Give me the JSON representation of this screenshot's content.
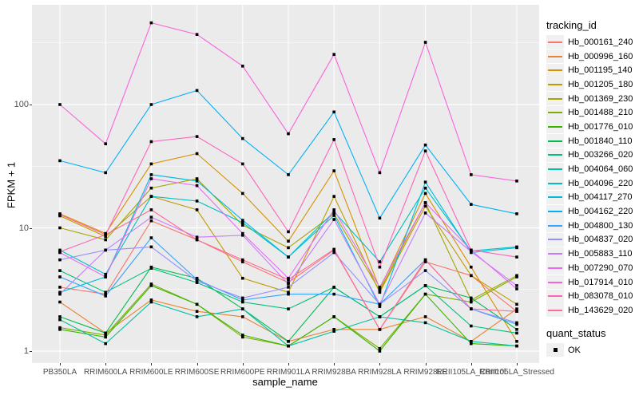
{
  "panel": {
    "bg": "#EBEBEB",
    "grid_color": "#FFFFFF",
    "point_color": "#000000"
  },
  "legend": {
    "tracking_title": "tracking_id",
    "quant_title": "quant_status",
    "quant_value": "OK"
  },
  "chart_data": {
    "type": "line",
    "title": "",
    "xlabel": "sample_name",
    "ylabel": "FPKM + 1",
    "y_scale": "log10",
    "ylim": [
      1,
      500
    ],
    "y_ticks": [
      1,
      10,
      100
    ],
    "grid": "on",
    "legend_position": "right",
    "marker": "black-square",
    "categories": [
      "PB350LA",
      "RRIM600LA",
      "RRIM600LE",
      "RRIM600SE",
      "RRIM600PE",
      "RRIM901LA",
      "RRIM928BA",
      "RRIM928LA",
      "RRIM928LE",
      "RRII105LA_Control",
      "RRII105LA_Stressed"
    ],
    "series": [
      {
        "name": "Hb_000161_240",
        "color": "#F8766D",
        "values": [
          3.3,
          2.9,
          11.4,
          8.0,
          5.3,
          3.6,
          6.6,
          1.5,
          5.3,
          4.1,
          2.1
        ]
      },
      {
        "name": "Hb_000996_160",
        "color": "#EA8331",
        "values": [
          2.5,
          1.4,
          2.6,
          2.1,
          1.9,
          1.2,
          1.5,
          1.5,
          1.9,
          1.2,
          2.2
        ]
      },
      {
        "name": "Hb_001195_140",
        "color": "#D89000",
        "values": [
          13,
          9,
          33,
          40,
          19,
          7.8,
          29,
          3.2,
          19,
          4.8,
          1.2
        ]
      },
      {
        "name": "Hb_001205_180",
        "color": "#C09B00",
        "values": [
          12.5,
          8.5,
          18,
          14,
          3.9,
          3.0,
          18,
          3.0,
          15,
          4.1,
          2.4
        ]
      },
      {
        "name": "Hb_001369_230",
        "color": "#A3A500",
        "values": [
          10,
          8,
          21,
          25,
          10.5,
          6.9,
          13,
          3.1,
          16,
          2.6,
          4.1
        ]
      },
      {
        "name": "Hb_001488_210",
        "color": "#7CAE00",
        "values": [
          1.55,
          1.35,
          3.5,
          2.4,
          1.3,
          1.1,
          1.9,
          1.05,
          2.9,
          2.5,
          4.0
        ]
      },
      {
        "name": "Hb_001776_010",
        "color": "#39B600",
        "values": [
          1.5,
          1.3,
          3.4,
          2.4,
          1.35,
          1.1,
          1.9,
          1.0,
          2.9,
          1.15,
          1.1
        ]
      },
      {
        "name": "Hb_001840_110",
        "color": "#00BB4E",
        "values": [
          1.9,
          1.4,
          4.8,
          3.9,
          2.2,
          1.2,
          3.3,
          1.9,
          3.4,
          2.7,
          1.5
        ]
      },
      {
        "name": "Hb_003266_020",
        "color": "#00BF7D",
        "values": [
          4.5,
          3.0,
          4.7,
          3.6,
          2.5,
          2.2,
          3.3,
          1.9,
          3.4,
          1.6,
          1.4
        ]
      },
      {
        "name": "Hb_004064_060",
        "color": "#00C1A3",
        "values": [
          1.8,
          1.15,
          2.5,
          1.9,
          2.2,
          1.1,
          1.45,
          1.9,
          1.7,
          1.2,
          1.1
        ]
      },
      {
        "name": "Hb_004096_220",
        "color": "#00BFC4",
        "values": [
          6.6,
          4.2,
          18,
          16.5,
          11,
          5.8,
          13.5,
          5.3,
          21,
          6.5,
          7.0
        ]
      },
      {
        "name": "Hb_004117_270",
        "color": "#00BAE0",
        "values": [
          3.0,
          4.0,
          27,
          24,
          11.5,
          5.8,
          12.6,
          2.3,
          23.5,
          6.3,
          6.9
        ]
      },
      {
        "name": "Hb_004162_220",
        "color": "#00B0F6",
        "values": [
          35,
          28,
          100,
          130,
          53,
          27,
          87,
          12,
          47,
          15.5,
          13
        ]
      },
      {
        "name": "Hb_004800_130",
        "color": "#35A2FF",
        "values": [
          4.0,
          2.8,
          8.3,
          3.8,
          2.6,
          2.9,
          2.9,
          2.4,
          5.5,
          2.2,
          1.65
        ]
      },
      {
        "name": "Hb_004837_020",
        "color": "#9590FF",
        "values": [
          5.5,
          6.6,
          7.0,
          3.7,
          2.7,
          3.3,
          6.3,
          2.4,
          4.5,
          2.2,
          1.7
        ]
      },
      {
        "name": "Hb_005883_110",
        "color": "#C77CFF",
        "values": [
          2.9,
          6.6,
          12.2,
          8.4,
          8.7,
          3.5,
          11.7,
          2.4,
          13.2,
          6.4,
          3.4
        ]
      },
      {
        "name": "Hb_007290_070",
        "color": "#E76BF3",
        "values": [
          6.3,
          4.0,
          25,
          22,
          9.0,
          3.9,
          14,
          3.3,
          16,
          6.6,
          3.2
        ]
      },
      {
        "name": "Hb_017914_010",
        "color": "#FA62DB",
        "values": [
          100,
          48,
          460,
          370,
          205,
          58,
          255,
          28,
          320,
          27,
          24
        ]
      },
      {
        "name": "Hb_083078_010",
        "color": "#FF62BC",
        "values": [
          6.4,
          8.8,
          50,
          55,
          33,
          9.3,
          52,
          4.8,
          42,
          6.6,
          5.8
        ]
      },
      {
        "name": "Hb_143629_020",
        "color": "#FF6A98",
        "values": [
          12.8,
          8.8,
          14,
          8.0,
          5.5,
          3.8,
          6.7,
          1.5,
          5.5,
          2.2,
          2.1
        ]
      }
    ],
    "quant_status": {
      "label": "OK",
      "marker_color": "#000000"
    }
  }
}
